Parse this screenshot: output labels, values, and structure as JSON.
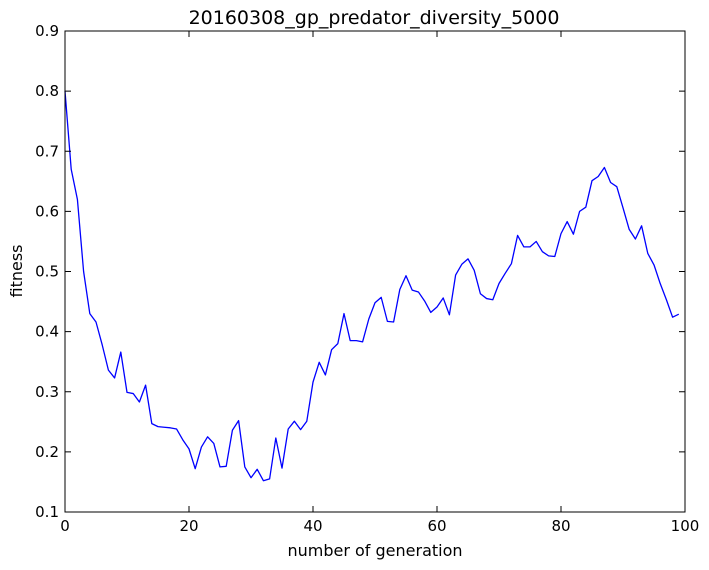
{
  "chart_data": {
    "type": "line",
    "title": "20160308_gp_predator_diversity_5000",
    "xlabel": "number of generation",
    "ylabel": "fitness",
    "xlim": [
      0,
      100
    ],
    "ylim": [
      0.1,
      0.9
    ],
    "xticks": [
      0,
      20,
      40,
      60,
      80,
      100
    ],
    "xtick_labels": [
      "0",
      "20",
      "40",
      "60",
      "80",
      "100"
    ],
    "yticks": [
      0.1,
      0.2,
      0.3,
      0.4,
      0.5,
      0.6,
      0.7,
      0.8,
      0.9
    ],
    "ytick_labels": [
      "0.1",
      "0.2",
      "0.3",
      "0.4",
      "0.5",
      "0.6",
      "0.7",
      "0.8",
      "0.9"
    ],
    "grid": false,
    "series": [
      {
        "color": "#0000ff",
        "x": [
          0,
          1,
          2,
          3,
          4,
          5,
          6,
          7,
          8,
          9,
          10,
          11,
          12,
          13,
          14,
          15,
          16,
          17,
          18,
          19,
          20,
          21,
          22,
          23,
          24,
          25,
          26,
          27,
          28,
          29,
          30,
          31,
          32,
          33,
          34,
          35,
          36,
          37,
          38,
          39,
          40,
          41,
          42,
          43,
          44,
          45,
          46,
          47,
          48,
          49,
          50,
          51,
          52,
          53,
          54,
          55,
          56,
          57,
          58,
          59,
          60,
          61,
          62,
          63,
          64,
          65,
          66,
          67,
          68,
          69,
          70,
          71,
          72,
          73,
          74,
          75,
          76,
          77,
          78,
          79,
          80,
          81,
          82,
          83,
          84,
          85,
          86,
          87,
          88,
          89,
          90,
          91,
          92,
          93,
          94,
          95,
          96,
          97,
          98,
          99
        ],
        "y": [
          0.8,
          0.67,
          0.62,
          0.5,
          0.43,
          0.416,
          0.378,
          0.336,
          0.323,
          0.366,
          0.299,
          0.297,
          0.283,
          0.311,
          0.247,
          0.242,
          0.241,
          0.24,
          0.238,
          0.22,
          0.205,
          0.172,
          0.208,
          0.225,
          0.214,
          0.175,
          0.176,
          0.236,
          0.252,
          0.175,
          0.157,
          0.171,
          0.152,
          0.155,
          0.223,
          0.173,
          0.238,
          0.251,
          0.237,
          0.251,
          0.316,
          0.349,
          0.328,
          0.37,
          0.38,
          0.43,
          0.385,
          0.385,
          0.383,
          0.421,
          0.448,
          0.457,
          0.417,
          0.416,
          0.47,
          0.493,
          0.469,
          0.466,
          0.451,
          0.432,
          0.441,
          0.456,
          0.428,
          0.494,
          0.512,
          0.521,
          0.502,
          0.463,
          0.455,
          0.453,
          0.48,
          0.497,
          0.513,
          0.56,
          0.541,
          0.541,
          0.55,
          0.533,
          0.526,
          0.525,
          0.563,
          0.583,
          0.562,
          0.6,
          0.607,
          0.651,
          0.658,
          0.673,
          0.648,
          0.641,
          0.606,
          0.57,
          0.554,
          0.576,
          0.53,
          0.511,
          0.48,
          0.453,
          0.424,
          0.429
        ]
      }
    ]
  }
}
